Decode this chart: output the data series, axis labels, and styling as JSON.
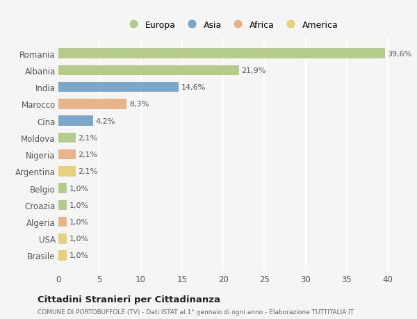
{
  "countries": [
    "Romania",
    "Albania",
    "India",
    "Marocco",
    "Cina",
    "Moldova",
    "Nigeria",
    "Argentina",
    "Belgio",
    "Croazia",
    "Algeria",
    "USA",
    "Brasile"
  ],
  "values": [
    39.6,
    21.9,
    14.6,
    8.3,
    4.2,
    2.1,
    2.1,
    2.1,
    1.0,
    1.0,
    1.0,
    1.0,
    1.0
  ],
  "labels": [
    "39,6%",
    "21,9%",
    "14,6%",
    "8,3%",
    "4,2%",
    "2,1%",
    "2,1%",
    "2,1%",
    "1,0%",
    "1,0%",
    "1,0%",
    "1,0%",
    "1,0%"
  ],
  "continent": [
    "Europa",
    "Europa",
    "Asia",
    "Africa",
    "Asia",
    "Europa",
    "Africa",
    "America",
    "Europa",
    "Europa",
    "Africa",
    "America",
    "America"
  ],
  "colors": {
    "Europa": "#b5cb8b",
    "Asia": "#7ba7c9",
    "Africa": "#e8b48a",
    "America": "#e8d07e"
  },
  "legend_order": [
    "Europa",
    "Asia",
    "Africa",
    "America"
  ],
  "xlim": [
    0,
    42
  ],
  "xticks": [
    0,
    5,
    10,
    15,
    20,
    25,
    30,
    35,
    40
  ],
  "background_color": "#f5f5f5",
  "grid_color": "#ffffff",
  "title": "Cittadini Stranieri per Cittadinanza",
  "subtitle": "COMUNE DI PORTOBUFFOLÈ (TV) - Dati ISTAT al 1° gennaio di ogni anno - Elaborazione TUTTITALIA.IT"
}
